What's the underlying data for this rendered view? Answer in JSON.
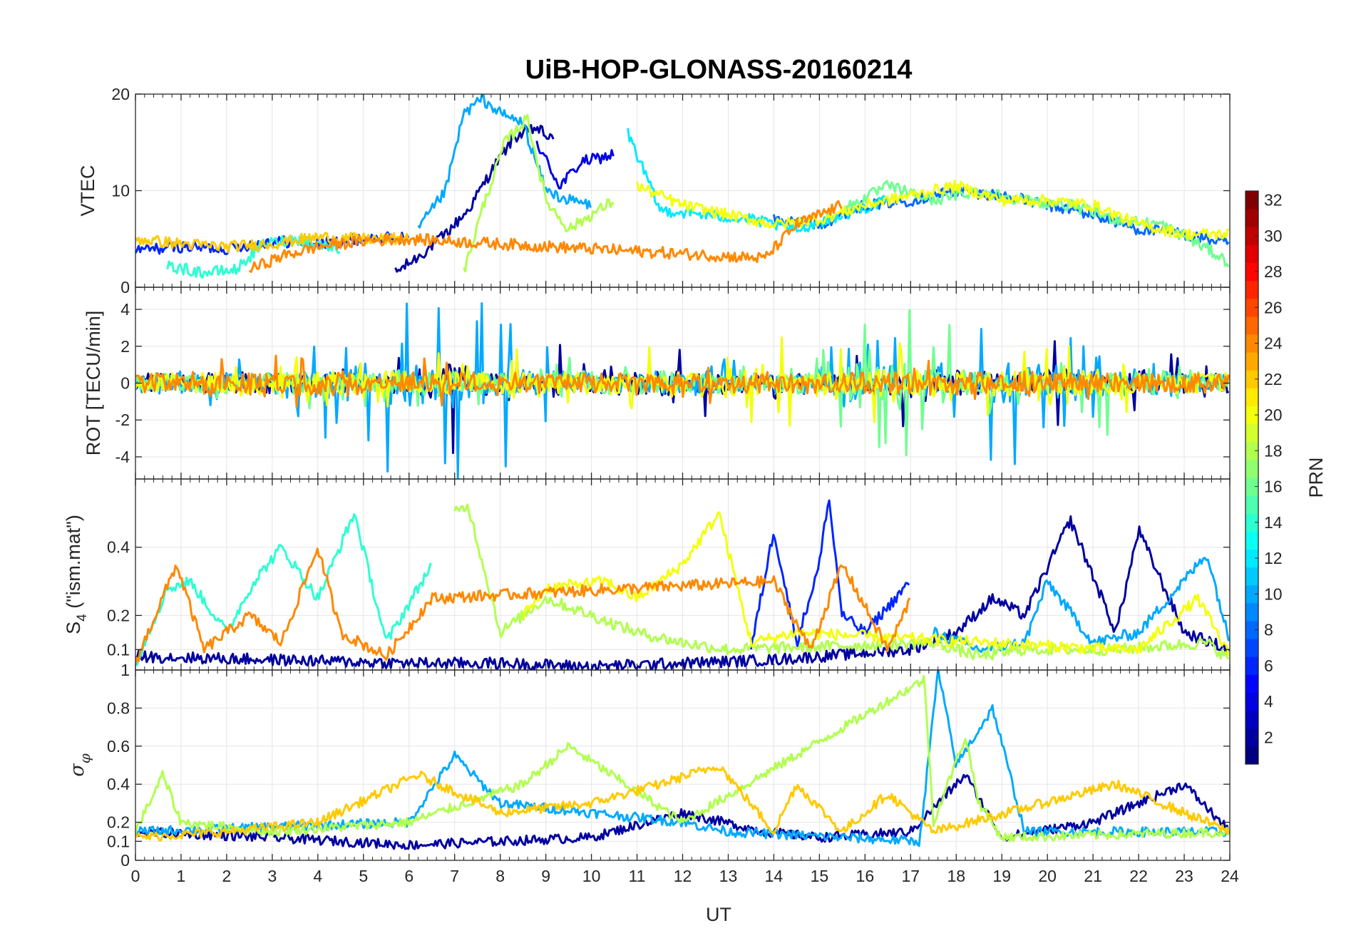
{
  "chart_data": {
    "type": "line",
    "title": "UiB-HOP-GLONASS-20160214",
    "xlabel": "UT",
    "xlim": [
      0,
      24
    ],
    "x_ticks": [
      "0",
      "1",
      "2",
      "3",
      "4",
      "5",
      "6",
      "7",
      "8",
      "9",
      "10",
      "11",
      "12",
      "13",
      "14",
      "15",
      "16",
      "17",
      "18",
      "19",
      "20",
      "21",
      "22",
      "23",
      "24"
    ],
    "colorbar": {
      "label": "PRN",
      "range": [
        1,
        32
      ],
      "colormap": "jet",
      "ticks": [
        "2",
        "4",
        "6",
        "8",
        "10",
        "12",
        "14",
        "16",
        "18",
        "20",
        "22",
        "24",
        "26",
        "28",
        "30",
        "32"
      ]
    },
    "panels": [
      {
        "ylabel": "VTEC",
        "ylim": [
          0,
          20
        ],
        "yticks": [
          "0",
          "10",
          "20"
        ],
        "series": [
          {
            "prn": 2,
            "x": [
              5.7,
              6.3,
              6.8,
              7.3,
              7.8,
              8.3,
              8.8,
              9.2
            ],
            "y": [
              1.5,
              3.5,
              5.5,
              8,
              12,
              15.5,
              16.5,
              15
            ]
          },
          {
            "prn": 4,
            "x": [
              8.8,
              9.3,
              9.8,
              10.3,
              10.5
            ],
            "y": [
              15,
              10.5,
              13,
              13.5,
              13.8
            ]
          },
          {
            "prn": 6,
            "x": [
              0,
              1,
              2,
              3,
              4,
              5,
              6
            ],
            "y": [
              3.8,
              4.2,
              4.0,
              4.8,
              4.5,
              5.0,
              5.2
            ]
          },
          {
            "prn": 8,
            "x": [
              14,
              15,
              16,
              17,
              18,
              19,
              20,
              21,
              22,
              23,
              24
            ],
            "y": [
              7,
              6.5,
              8.5,
              9,
              10,
              9.5,
              8.5,
              7.5,
              6,
              5.5,
              4.5
            ]
          },
          {
            "prn": 10,
            "x": [
              6.2,
              6.8,
              7.2,
              7.6,
              8.0,
              8.5,
              9.0,
              9.5,
              10.0
            ],
            "y": [
              6,
              10,
              18,
              19.5,
              18,
              17,
              10,
              9,
              8.5
            ]
          },
          {
            "prn": 12,
            "x": [
              10.8,
              11.5,
              12.5,
              13.5,
              14.5,
              15.5,
              16.5
            ],
            "y": [
              16,
              8,
              7.5,
              7,
              6,
              7.5,
              9
            ]
          },
          {
            "prn": 14,
            "x": [
              0.7,
              1.5,
              2.2,
              2.8,
              3.5,
              4.5
            ],
            "y": [
              2.2,
              1.5,
              1.8,
              4.5,
              5.0,
              4.0
            ]
          },
          {
            "prn": 16,
            "x": [
              15.5,
              16.5,
              17.5,
              18.5,
              19.5,
              20.5,
              21.5,
              22.5,
              23.5,
              24
            ],
            "y": [
              8,
              10.5,
              9,
              10,
              9,
              8.5,
              7,
              6.5,
              4,
              2.5
            ]
          },
          {
            "prn": 18,
            "x": [
              7.2,
              7.6,
              8.1,
              8.6,
              9.0,
              9.5,
              10.0,
              10.5
            ],
            "y": [
              1.5,
              8,
              15,
              17.5,
              9,
              6,
              7.5,
              9
            ]
          },
          {
            "prn": 20,
            "x": [
              11,
              12,
              13,
              14,
              15,
              16,
              17,
              18,
              19,
              20,
              21,
              22,
              23,
              24
            ],
            "y": [
              10.5,
              8.5,
              7.5,
              6.5,
              7,
              8.5,
              9.5,
              10.5,
              9,
              9,
              8.5,
              6.5,
              5.5,
              5.5
            ]
          },
          {
            "prn": 22,
            "x": [
              0,
              1,
              2,
              3,
              4,
              5,
              6
            ],
            "y": [
              5.0,
              4.5,
              4.2,
              4.5,
              5.2,
              5.0,
              5.0
            ]
          },
          {
            "prn": 24,
            "x": [
              2.5,
              3.2,
              4.0,
              5.0,
              6.0,
              13.8,
              14.5,
              15.5
            ],
            "y": [
              1.8,
              3.2,
              4.2,
              4.8,
              5.0,
              3.0,
              6.5,
              8.5
            ]
          }
        ]
      },
      {
        "ylabel": "ROT [TECU/min]",
        "ylim": [
          -5.2,
          5.2
        ],
        "yticks": [
          "-4",
          "-2",
          "0",
          "2",
          "4"
        ],
        "series": [
          {
            "prn": 2,
            "x": [
              0,
              5.5,
              6.0,
              7.2,
              8.5,
              9.0,
              12.0,
              14.0,
              17.5,
              18.0,
              20.0,
              21.0,
              22.0,
              24.0
            ],
            "y": [
              0,
              0.5,
              -2.8,
              -4.5,
              2.5,
              -3.8,
              2.5,
              -1.5,
              3.5,
              -2.5,
              3.0,
              -1.8,
              2.2,
              0
            ]
          },
          {
            "prn": 10,
            "x": [
              0,
              6.3,
              8.1,
              8.6,
              12.5,
              17.6,
              18.8,
              24.0
            ],
            "y": [
              0,
              5.0,
              5.0,
              -3.0,
              2.0,
              -5.0,
              5.0,
              0
            ]
          },
          {
            "prn": 16,
            "x": [
              0,
              4.0,
              7.0,
              10.0,
              14.5,
              17.3,
              17.5,
              21.0,
              24.0
            ],
            "y": [
              0,
              1.0,
              2.5,
              -2.5,
              1.5,
              5.0,
              -5.0,
              3.0,
              0
            ]
          },
          {
            "prn": 20,
            "x": [
              0,
              7.0,
              9.0,
              11.5,
              12.5,
              13.0,
              17.6,
              19.0,
              24.0
            ],
            "y": [
              0,
              2.0,
              -3.0,
              3.0,
              -2.0,
              2.5,
              2.5,
              -2.5,
              0
            ]
          },
          {
            "prn": 24,
            "x": [
              0,
              2.3,
              5.5,
              6.2,
              12.0,
              16.0,
              17.0,
              24.0
            ],
            "y": [
              0,
              1.5,
              1.5,
              -1.5,
              1.0,
              -1.0,
              1.0,
              0
            ]
          }
        ]
      },
      {
        "ylabel": "S_4 (\"ism.mat\")",
        "ylim": [
          0.04,
          0.6
        ],
        "yticks": [
          "0.1",
          "0.2",
          "0.4"
        ],
        "series": [
          {
            "prn": 2,
            "x": [
              0,
              6,
              8,
              10,
              12,
              14,
              17,
              18,
              18.8,
              19.5,
              20.5,
              21.5,
              22,
              23,
              24
            ],
            "y": [
              0.08,
              0.06,
              0.06,
              0.05,
              0.06,
              0.07,
              0.1,
              0.15,
              0.25,
              0.2,
              0.48,
              0.15,
              0.45,
              0.15,
              0.1
            ]
          },
          {
            "prn": 6,
            "x": [
              13.5,
              14,
              14.5,
              15,
              15.2,
              15.5,
              16,
              17
            ],
            "y": [
              0.1,
              0.45,
              0.12,
              0.35,
              0.55,
              0.2,
              0.15,
              0.3
            ]
          },
          {
            "prn": 10,
            "x": [
              17.5,
              18.5,
              19.5,
              20,
              21,
              22,
              23.5,
              24
            ],
            "y": [
              0.15,
              0.1,
              0.12,
              0.3,
              0.12,
              0.15,
              0.38,
              0.12
            ]
          },
          {
            "prn": 14,
            "x": [
              0,
              0.7,
              1.2,
              2,
              2.6,
              3.2,
              4,
              4.8,
              5.5,
              6.5
            ],
            "y": [
              0.06,
              0.28,
              0.3,
              0.15,
              0.3,
              0.4,
              0.25,
              0.5,
              0.12,
              0.35
            ]
          },
          {
            "prn": 18,
            "x": [
              7,
              7.3,
              8,
              9,
              10,
              11,
              12,
              13,
              17.5,
              18.5,
              19.5,
              21.5,
              23.5,
              24
            ],
            "y": [
              0.5,
              0.52,
              0.15,
              0.25,
              0.2,
              0.15,
              0.12,
              0.1,
              0.12,
              0.08,
              0.1,
              0.1,
              0.12,
              0.07
            ]
          },
          {
            "prn": 20,
            "x": [
              8.5,
              9,
              10.3,
              11,
              12,
              12.8,
              13.5,
              14.5,
              21.5,
              22,
              23.3,
              24
            ],
            "y": [
              0.2,
              0.28,
              0.3,
              0.25,
              0.35,
              0.5,
              0.12,
              0.15,
              0.1,
              0.1,
              0.25,
              0.08
            ]
          },
          {
            "prn": 24,
            "x": [
              0,
              0.9,
              1.5,
              2.5,
              3.2,
              4.0,
              4.5,
              5.5,
              6.5,
              14,
              14.8,
              15.5,
              16.5,
              17.0
            ],
            "y": [
              0.06,
              0.35,
              0.1,
              0.2,
              0.12,
              0.4,
              0.15,
              0.08,
              0.25,
              0.3,
              0.1,
              0.35,
              0.1,
              0.25
            ]
          }
        ]
      },
      {
        "ylabel": "σ_φ",
        "ylim": [
          0,
          1
        ],
        "yticks": [
          "0",
          "0.1",
          "0.2",
          "0.4",
          "0.6",
          "0.8",
          "1"
        ],
        "series": [
          {
            "prn": 2,
            "x": [
              0,
              3,
              6,
              8,
              10,
              12,
              13.8,
              15,
              17,
              18.2,
              19,
              21,
              23,
              24
            ],
            "y": [
              0.15,
              0.12,
              0.08,
              0.1,
              0.12,
              0.25,
              0.15,
              0.12,
              0.15,
              0.45,
              0.12,
              0.2,
              0.4,
              0.15
            ]
          },
          {
            "prn": 10,
            "x": [
              0,
              6,
              7,
              8,
              10,
              12,
              13,
              17.2,
              17.6,
              18.0,
              18.8,
              19.5,
              24
            ],
            "y": [
              0.15,
              0.2,
              0.55,
              0.3,
              0.25,
              0.2,
              0.15,
              0.1,
              1.0,
              0.5,
              0.8,
              0.15,
              0.15
            ]
          },
          {
            "prn": 18,
            "x": [
              0,
              0.6,
              1,
              3,
              6,
              8.5,
              9.5,
              12,
              17.3,
              17.5,
              18.2,
              18.5,
              19,
              24
            ],
            "y": [
              0.15,
              0.45,
              0.2,
              0.15,
              0.2,
              0.4,
              0.6,
              0.2,
              0.95,
              0.2,
              0.65,
              0.3,
              0.12,
              0.15
            ]
          },
          {
            "prn": 22,
            "x": [
              0,
              2,
              4,
              6.2,
              8,
              10,
              11.5,
              12.8,
              14,
              14.5,
              15.5,
              16.5,
              17.5,
              21.5,
              24
            ],
            "y": [
              0.12,
              0.15,
              0.2,
              0.45,
              0.25,
              0.3,
              0.4,
              0.5,
              0.15,
              0.4,
              0.15,
              0.35,
              0.15,
              0.4,
              0.15
            ]
          }
        ]
      }
    ]
  }
}
